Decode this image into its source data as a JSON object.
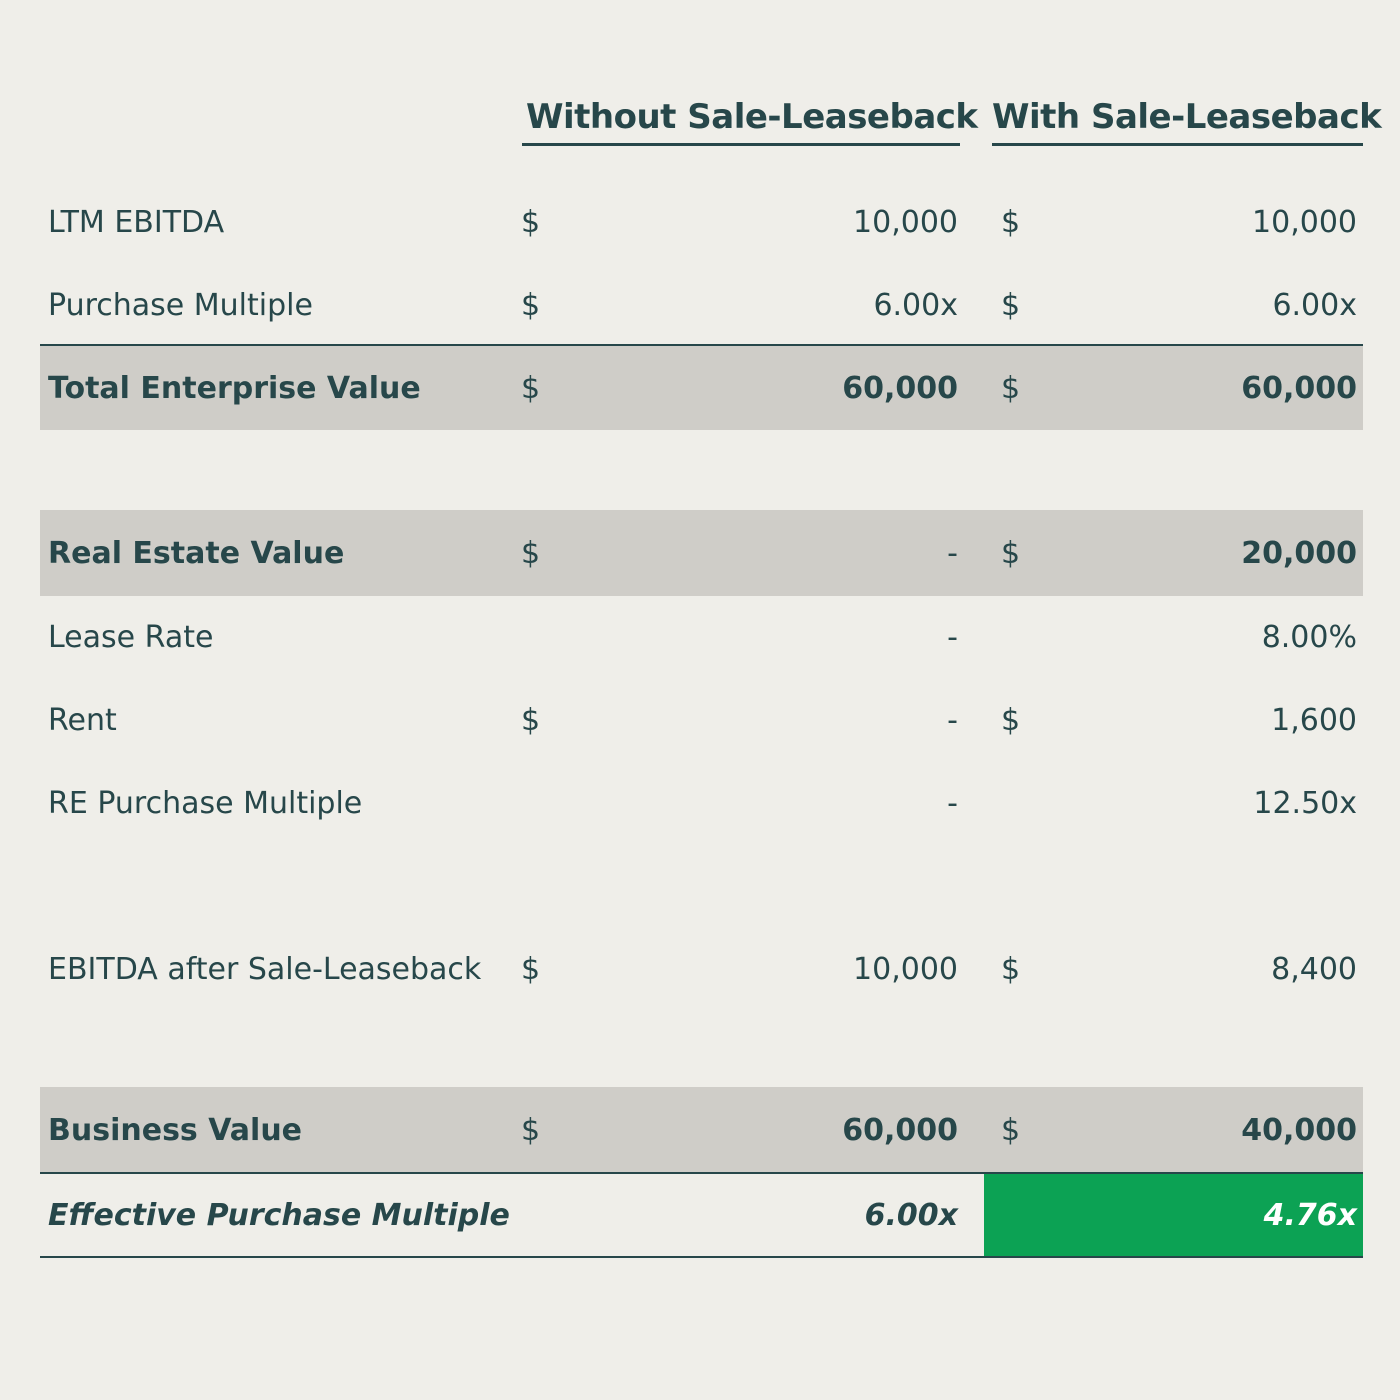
{
  "header": {
    "without": "Without Sale-Leaseback",
    "with": "With Sale-Leaseback"
  },
  "colors": {
    "background": "#efeee9",
    "text": "#27474a",
    "shaded_row": "#cfcdc8",
    "highlight": "#0ca254"
  },
  "rows": [
    {
      "label": "LTM EBITDA",
      "dollar1": "$",
      "val1": "10,000",
      "dollar2": "$",
      "val2": "10,000"
    },
    {
      "label": "Purchase Multiple",
      "dollar1": "$",
      "val1": "6.00x",
      "dollar2": "$",
      "val2": "6.00x"
    },
    {
      "label": "Total Enterprise Value",
      "dollar1": "$",
      "val1": "60,000",
      "dollar2": "$",
      "val2": "60,000"
    },
    {
      "label": "Real Estate Value",
      "dollar1": "$",
      "val1": "-",
      "dollar2": "$",
      "val2": "20,000"
    },
    {
      "label": "Lease Rate",
      "dollar1": "",
      "val1": "-",
      "dollar2": "",
      "val2": "8.00%"
    },
    {
      "label": "Rent",
      "dollar1": "$",
      "val1": "-",
      "dollar2": "$",
      "val2": "1,600"
    },
    {
      "label": "RE Purchase Multiple",
      "dollar1": "",
      "val1": "-",
      "dollar2": "",
      "val2": "12.50x"
    },
    {
      "label": "EBITDA after Sale-Leaseback",
      "dollar1": "$",
      "val1": "10,000",
      "dollar2": "$",
      "val2": "8,400"
    },
    {
      "label": "Business Value",
      "dollar1": "$",
      "val1": "60,000",
      "dollar2": "$",
      "val2": "40,000"
    },
    {
      "label": "Effective Purchase Multiple",
      "dollar1": "",
      "val1": "6.00x",
      "dollar2": "",
      "val2": "4.76x"
    }
  ]
}
